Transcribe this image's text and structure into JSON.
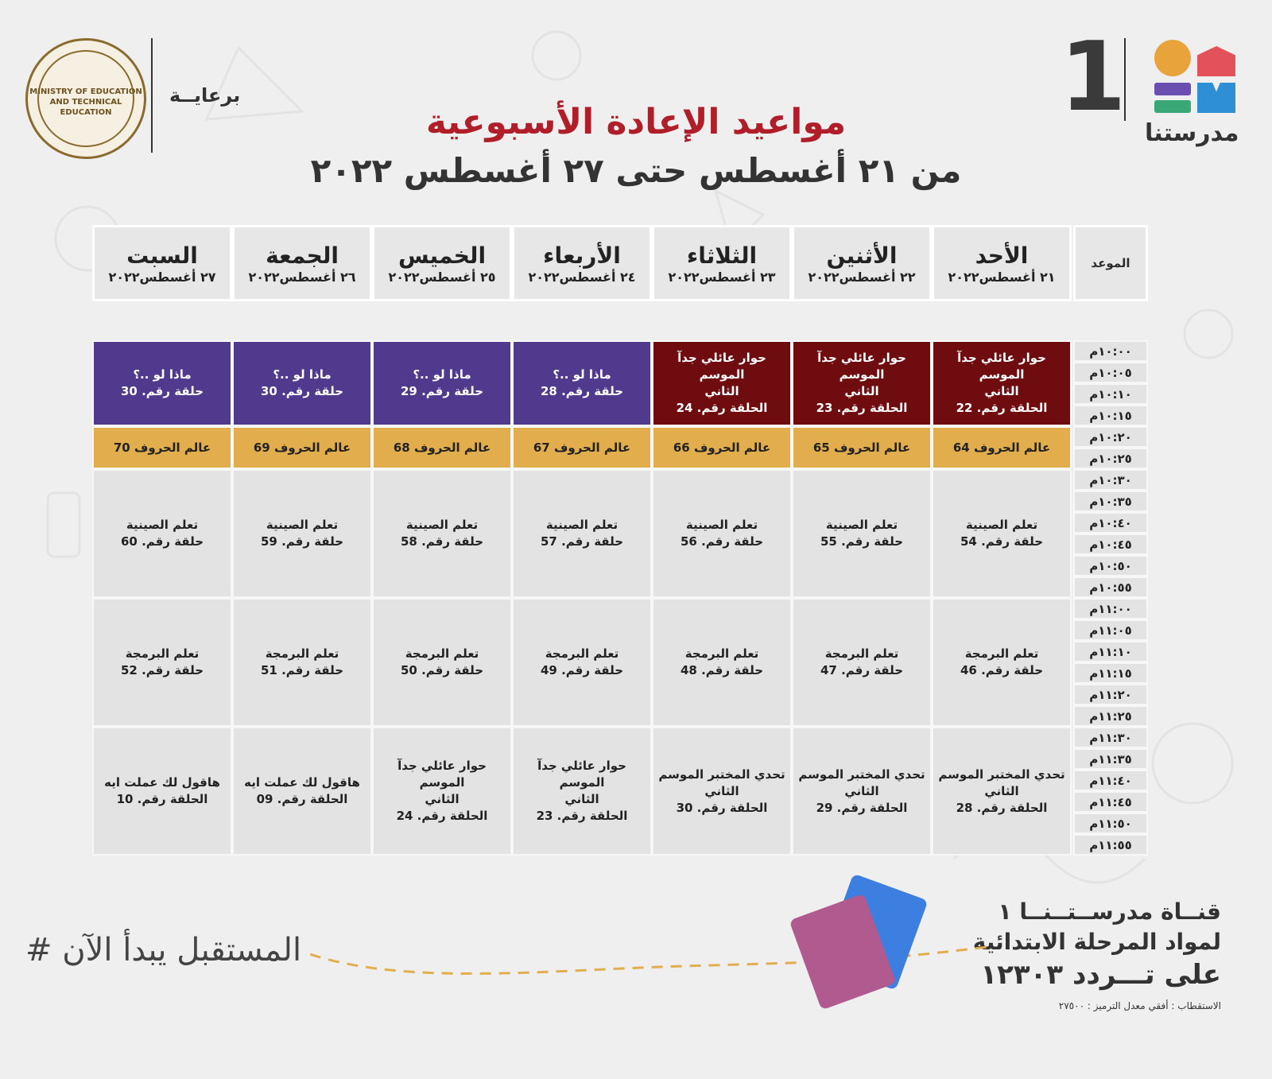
{
  "header": {
    "sponsor_label": "برعايــة",
    "title": "مواعيد الإعادة الأسبوعية",
    "subtitle": "من ٢١ أغسطس حتى ٢٧ أغسطس ٢٠٢٢",
    "seal_text": "MINISTRY OF EDUCATION AND TECHNICAL EDUCATION",
    "channel_number": "1",
    "logo_name": "مدرستنا",
    "logo_colors": [
      "#e8a33a",
      "#e3525a",
      "#6a4fb0",
      "#3aa776",
      "#2e8fd6"
    ]
  },
  "schedule": {
    "time_header": "الموعد",
    "days": [
      {
        "name": "الأحد",
        "date": "٢١ أغسطس٢٠٢٢"
      },
      {
        "name": "الأثنين",
        "date": "٢٢ أغسطس٢٠٢٢"
      },
      {
        "name": "الثلاثاء",
        "date": "٢٣ أغسطس٢٠٢٢"
      },
      {
        "name": "الأربعاء",
        "date": "٢٤ أغسطس٢٠٢٢"
      },
      {
        "name": "الخميس",
        "date": "٢٥ أغسطس٢٠٢٢"
      },
      {
        "name": "الجمعة",
        "date": "٢٦ أغسطس٢٠٢٢"
      },
      {
        "name": "السبت",
        "date": "٢٧ أغسطس٢٠٢٢"
      }
    ],
    "times": [
      "١٠:٠٠م",
      "١٠:٠٥م",
      "١٠:١٠م",
      "١٠:١٥م",
      "١٠:٢٠م",
      "١٠:٢٥م",
      "١٠:٣٠م",
      "١٠:٣٥م",
      "١٠:٤٠م",
      "١٠:٤٥م",
      "١٠:٥٠م",
      "١٠:٥٥م",
      "١١:٠٠م",
      "١١:٠٥م",
      "١١:١٠م",
      "١١:١٥م",
      "١١:٢٠م",
      "١١:٢٥م",
      "١١:٣٠م",
      "١١:٣٥م",
      "١١:٤٠م",
      "١١:٤٥م",
      "١١:٥٠م",
      "١١:٥٥م"
    ],
    "blocks": [
      {
        "color": "#4f3a8e",
        "cells": [
          "حوار عائلي جدآ الموسم\nالثاني\nالحلقة رقم. 22",
          "حوار عائلي جدآ الموسم\nالثاني\nالحلقة رقم. 23",
          "حوار عائلي جدآ الموسم\nالثاني\nالحلقة رقم. 24",
          "ماذا لو ..؟\nحلقة رقم. 28",
          "ماذا لو ..؟\nحلقة رقم. 29",
          "ماذا لو ..؟\nحلقة رقم. 30",
          "ماذا لو ..؟\nحلقة رقم. 30"
        ]
      },
      {
        "color": "#e2ae4d",
        "cells": [
          "عالم الحروف 64",
          "عالم الحروف 65",
          "عالم الحروف 66",
          "عالم الحروف 67",
          "عالم الحروف 68",
          "عالم الحروف 69",
          "عالم الحروف 70"
        ]
      },
      {
        "color": "#e3e3e3",
        "cells": [
          "تعلم الصينية\nحلقة رقم. 54",
          "تعلم الصينية\nحلقة رقم. 55",
          "تعلم الصينية\nحلقة رقم. 56",
          "تعلم الصينية\nحلقة رقم. 57",
          "تعلم الصينية\nحلقة رقم. 58",
          "تعلم الصينية\nحلقة رقم. 59",
          "تعلم الصينية\nحلقة رقم. 60"
        ]
      },
      {
        "color": "#e3e3e3",
        "cells": [
          "تعلم البرمجة\nحلقة رقم. 46",
          "تعلم البرمجة\nحلقة رقم. 47",
          "تعلم البرمجة\nحلقة رقم. 48",
          "تعلم البرمجة\nحلقة رقم. 49",
          "تعلم البرمجة\nحلقة رقم. 50",
          "تعلم البرمجة\nحلقة رقم. 51",
          "تعلم البرمجة\nحلقة رقم. 52"
        ]
      },
      {
        "color": "#e3e3e3",
        "cells": [
          "تحدي المختبر الموسم\nالثاني\nالحلقة رقم. 28",
          "تحدي المختبر الموسم\nالثاني\nالحلقة رقم. 29",
          "تحدي المختبر الموسم\nالثاني\nالحلقة رقم. 30",
          "حوار عائلي جدآ الموسم\nالثاني\nالحلقة رقم. 23",
          "حوار عائلي جدآ الموسم\nالثاني\nالحلقة رقم. 24",
          "هاقول لك عملت ايه\nالحلقة رقم. 09",
          "هاقول لك عملت ايه\nالحلقة رقم. 10"
        ]
      }
    ],
    "maroon_color": "#6e0c0f"
  },
  "footer": {
    "channel_line": "قنــاة مدرســتــنــا ١",
    "subjects_line": "لمواد المرحلة الابتدائية",
    "frequency_line": "على تـــردد ١٢٣٠٣",
    "polarization_line": "الاستقطاب : أفقي معدل الترميز : ٢٧٥٠٠",
    "hashtag": "# المستقبل يبدأ الآن"
  }
}
